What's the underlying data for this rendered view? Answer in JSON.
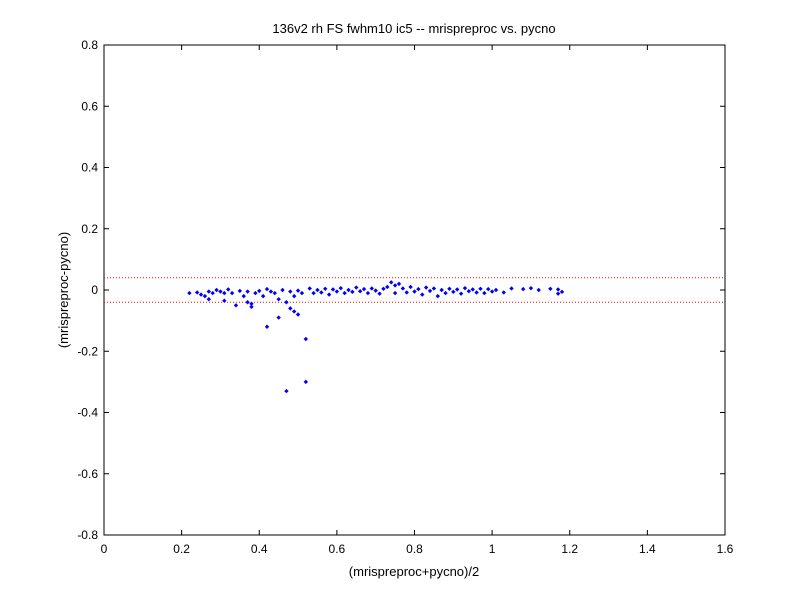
{
  "chart_data": {
    "type": "scatter",
    "title": "136v2 rh FS fwhm10 ic5 -- mrispreproc vs. pycno",
    "xlabel": "(mrispreproc+pycno)/2",
    "ylabel": "(mrispreproc-pycno)",
    "xlim": [
      0,
      1.6
    ],
    "ylim": [
      -0.8,
      0.8
    ],
    "xticks": [
      "0",
      "0.2",
      "0.4",
      "0.6",
      "0.8",
      "1",
      "1.2",
      "1.4",
      "1.6"
    ],
    "yticks": [
      "0.8",
      "0.6",
      "0.4",
      "0.2",
      "0",
      "-0.2",
      "-0.4",
      "-0.6",
      "-0.8"
    ],
    "grid": false,
    "legend": "none",
    "marker_color": "#0000ff",
    "reference_lines": {
      "values": [
        0.04,
        -0.04
      ],
      "color": "#ff0000",
      "style": "dotted"
    },
    "series": [
      {
        "points": [
          [
            0.22,
            -0.01
          ],
          [
            0.24,
            -0.008
          ],
          [
            0.25,
            -0.015
          ],
          [
            0.26,
            -0.02
          ],
          [
            0.27,
            -0.03
          ],
          [
            0.27,
            -0.005
          ],
          [
            0.28,
            -0.01
          ],
          [
            0.29,
            0.0
          ],
          [
            0.3,
            -0.005
          ],
          [
            0.31,
            -0.01
          ],
          [
            0.31,
            -0.035
          ],
          [
            0.32,
            0.002
          ],
          [
            0.33,
            -0.01
          ],
          [
            0.34,
            -0.05
          ],
          [
            0.35,
            -0.003
          ],
          [
            0.36,
            -0.02
          ],
          [
            0.37,
            -0.04
          ],
          [
            0.37,
            -0.005
          ],
          [
            0.38,
            -0.055
          ],
          [
            0.38,
            -0.045
          ],
          [
            0.39,
            -0.01
          ],
          [
            0.4,
            -0.003
          ],
          [
            0.41,
            -0.02
          ],
          [
            0.42,
            -0.12
          ],
          [
            0.42,
            0.003
          ],
          [
            0.43,
            -0.005
          ],
          [
            0.44,
            -0.01
          ],
          [
            0.45,
            -0.09
          ],
          [
            0.45,
            -0.03
          ],
          [
            0.46,
            0.0
          ],
          [
            0.47,
            -0.33
          ],
          [
            0.47,
            -0.04
          ],
          [
            0.48,
            -0.06
          ],
          [
            0.48,
            -0.005
          ],
          [
            0.49,
            -0.07
          ],
          [
            0.49,
            -0.02
          ],
          [
            0.5,
            -0.08
          ],
          [
            0.5,
            -0.002
          ],
          [
            0.51,
            -0.01
          ],
          [
            0.52,
            -0.3
          ],
          [
            0.52,
            -0.16
          ],
          [
            0.53,
            0.005
          ],
          [
            0.54,
            -0.01
          ],
          [
            0.55,
            0.0
          ],
          [
            0.56,
            -0.008
          ],
          [
            0.57,
            0.004
          ],
          [
            0.58,
            -0.015
          ],
          [
            0.59,
            0.002
          ],
          [
            0.6,
            -0.005
          ],
          [
            0.61,
            0.006
          ],
          [
            0.62,
            -0.01
          ],
          [
            0.63,
            0.0
          ],
          [
            0.64,
            -0.006
          ],
          [
            0.65,
            0.008
          ],
          [
            0.66,
            -0.004
          ],
          [
            0.67,
            0.003
          ],
          [
            0.68,
            -0.01
          ],
          [
            0.69,
            0.005
          ],
          [
            0.7,
            -0.002
          ],
          [
            0.71,
            -0.012
          ],
          [
            0.72,
            0.004
          ],
          [
            0.73,
            0.01
          ],
          [
            0.74,
            0.025
          ],
          [
            0.75,
            0.015
          ],
          [
            0.75,
            -0.01
          ],
          [
            0.76,
            0.02
          ],
          [
            0.77,
            0.005
          ],
          [
            0.78,
            -0.008
          ],
          [
            0.79,
            0.01
          ],
          [
            0.8,
            -0.005
          ],
          [
            0.81,
            0.003
          ],
          [
            0.82,
            -0.015
          ],
          [
            0.83,
            0.008
          ],
          [
            0.84,
            -0.003
          ],
          [
            0.85,
            0.005
          ],
          [
            0.86,
            -0.02
          ],
          [
            0.87,
            0.0
          ],
          [
            0.88,
            -0.01
          ],
          [
            0.89,
            0.004
          ],
          [
            0.9,
            -0.006
          ],
          [
            0.91,
            0.002
          ],
          [
            0.92,
            -0.012
          ],
          [
            0.93,
            0.006
          ],
          [
            0.94,
            -0.004
          ],
          [
            0.95,
            0.002
          ],
          [
            0.96,
            -0.008
          ],
          [
            0.97,
            0.004
          ],
          [
            0.98,
            -0.01
          ],
          [
            0.99,
            0.003
          ],
          [
            1.0,
            -0.005
          ],
          [
            1.01,
            0.0
          ],
          [
            1.03,
            -0.008
          ],
          [
            1.05,
            0.005
          ],
          [
            1.08,
            0.003
          ],
          [
            1.1,
            0.006
          ],
          [
            1.12,
            0.0
          ],
          [
            1.15,
            0.004
          ],
          [
            1.17,
            0.002
          ],
          [
            1.17,
            -0.012
          ],
          [
            1.18,
            -0.006
          ]
        ]
      }
    ]
  }
}
